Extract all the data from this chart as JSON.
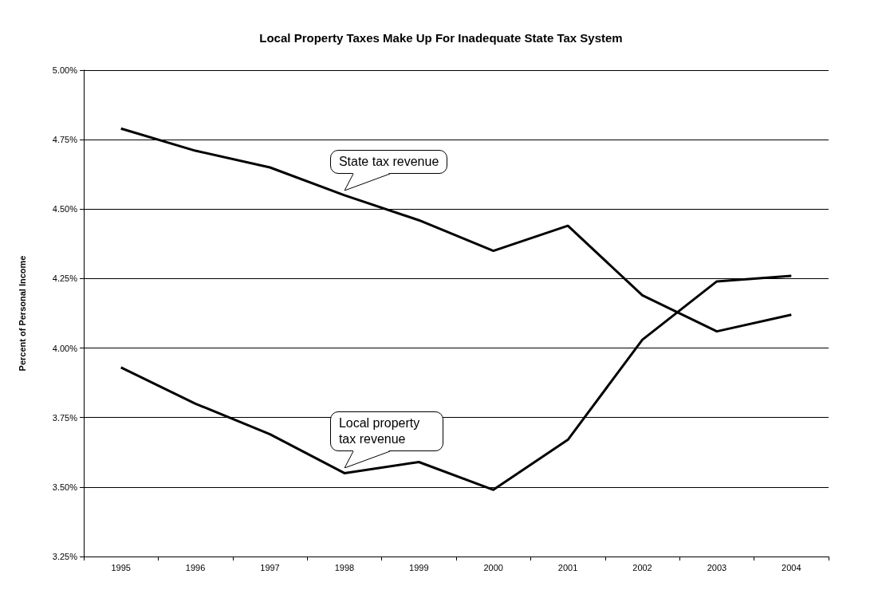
{
  "chart_data": {
    "type": "line",
    "title": "Local Property Taxes Make Up For Inadequate State Tax System",
    "ylabel": "Percent of Personal Income",
    "categories": [
      "1995",
      "1996",
      "1997",
      "1998",
      "1999",
      "2000",
      "2001",
      "2002",
      "2003",
      "2004"
    ],
    "series": [
      {
        "name": "State tax revenue",
        "color": "#000000",
        "values": [
          4.79,
          4.71,
          4.65,
          4.55,
          4.46,
          4.35,
          4.44,
          4.19,
          4.06,
          4.12
        ]
      },
      {
        "name": "Local property tax revenue",
        "color": "#000000",
        "values": [
          3.93,
          3.8,
          3.69,
          3.55,
          3.59,
          3.49,
          3.67,
          4.03,
          4.24,
          4.26
        ]
      }
    ],
    "ylim": [
      3.25,
      5.0
    ],
    "yticks": [
      {
        "value": 3.25,
        "label": "3.25%"
      },
      {
        "value": 3.5,
        "label": "3.50%"
      },
      {
        "value": 3.75,
        "label": "3.75%"
      },
      {
        "value": 4.0,
        "label": "4.00%"
      },
      {
        "value": 4.25,
        "label": "4.25%"
      },
      {
        "value": 4.5,
        "label": "4.50%"
      },
      {
        "value": 4.75,
        "label": "4.75%"
      },
      {
        "value": 5.0,
        "label": "5.00%"
      }
    ],
    "grid": "y",
    "marker": "none",
    "line_style": "solid",
    "legend": false
  }
}
